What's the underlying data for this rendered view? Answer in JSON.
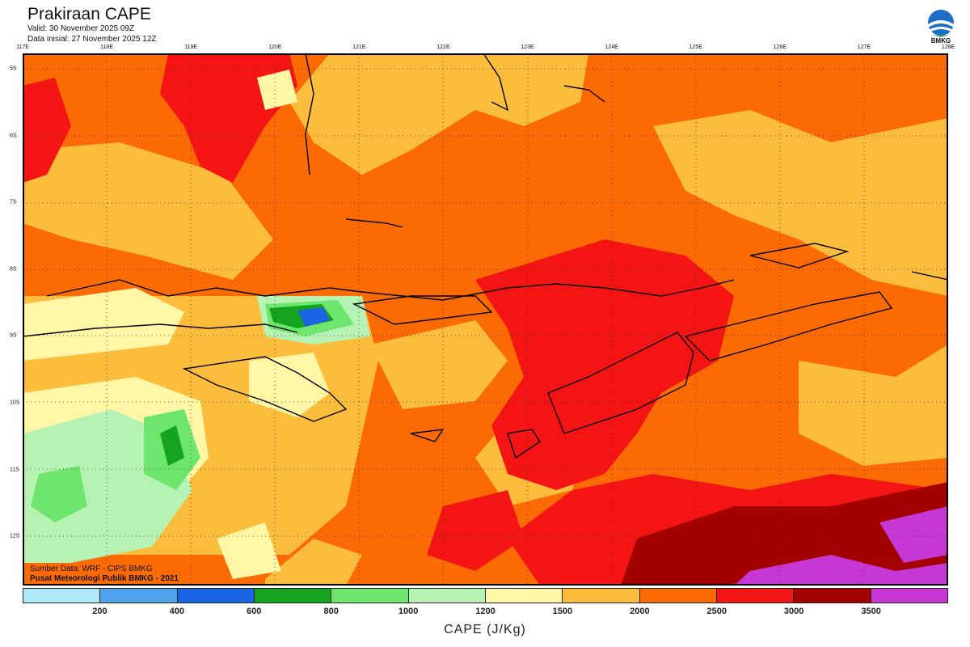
{
  "header": {
    "title": "Prakiraan CAPE",
    "valid": "Valid: 30 November 2025 09Z",
    "init": "Data inisial: 27 November 2025 12Z"
  },
  "logo": {
    "text": "BMKG",
    "icon": "bmkg-logo-icon"
  },
  "map": {
    "longitudes": [
      "117E",
      "118E",
      "119E",
      "120E",
      "121E",
      "122E",
      "123E",
      "124E",
      "125E",
      "126E",
      "127E",
      "128E"
    ],
    "latitudes": [
      "5S",
      "6S",
      "7S",
      "8S",
      "9S",
      "10S",
      "11S",
      "12S"
    ],
    "credit_source": "Sumber Data: WRF - CIPS BMKG",
    "credit_center": "Pusat Meteorologi Publik BMKG - 2021"
  },
  "colorbar": {
    "colors": [
      "#aeeaf7",
      "#4fa3ee",
      "#1a64e6",
      "#13a31c",
      "#6ee66e",
      "#b6f2b4",
      "#fff6a6",
      "#fdbd3c",
      "#fc6a04",
      "#f41414",
      "#a30000",
      "#c737d6"
    ],
    "labels": [
      "200",
      "400",
      "600",
      "800",
      "1000",
      "1200",
      "1500",
      "2000",
      "2500",
      "3000",
      "3500"
    ],
    "unit_label": "CAPE (J/Kg)"
  }
}
